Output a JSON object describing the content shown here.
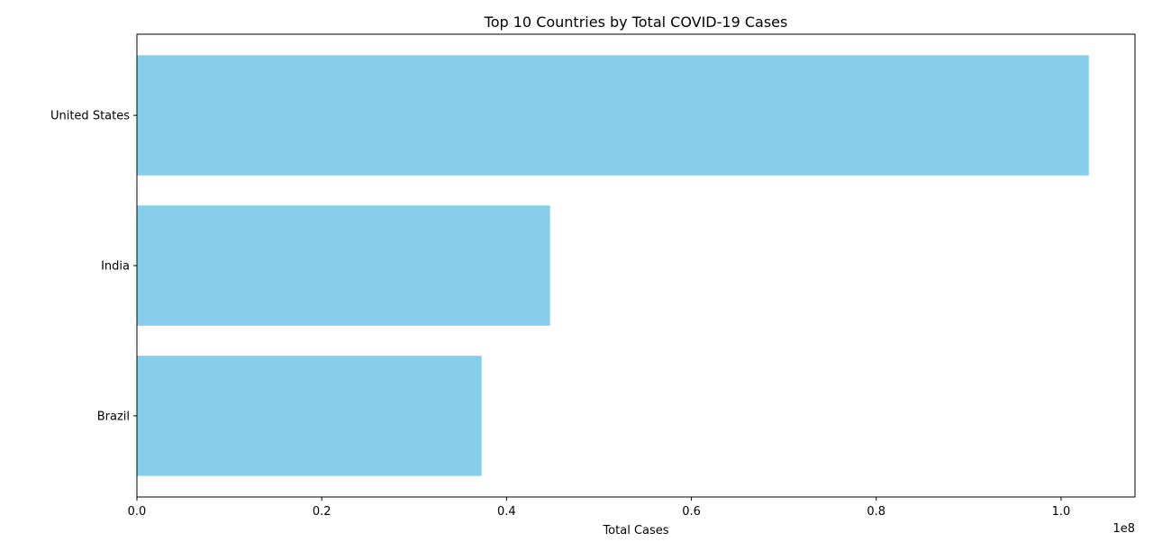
{
  "chart_data": {
    "type": "bar",
    "orientation": "horizontal",
    "title": "Top 10 Countries by Total COVID-19 Cases",
    "xlabel": "Total Cases",
    "ylabel": "",
    "offset_label": "1e8",
    "categories": [
      "United States",
      "India",
      "Brazil"
    ],
    "values": [
      103000000,
      44700000,
      37300000
    ],
    "xlim": [
      0,
      108000000
    ],
    "x_ticks": [
      0,
      20000000,
      40000000,
      60000000,
      80000000,
      100000000
    ],
    "x_tick_labels": [
      "0.0",
      "0.2",
      "0.4",
      "0.6",
      "0.8",
      "1.0"
    ],
    "bar_color": "#87ceeb",
    "grid": false,
    "legend": "none"
  }
}
